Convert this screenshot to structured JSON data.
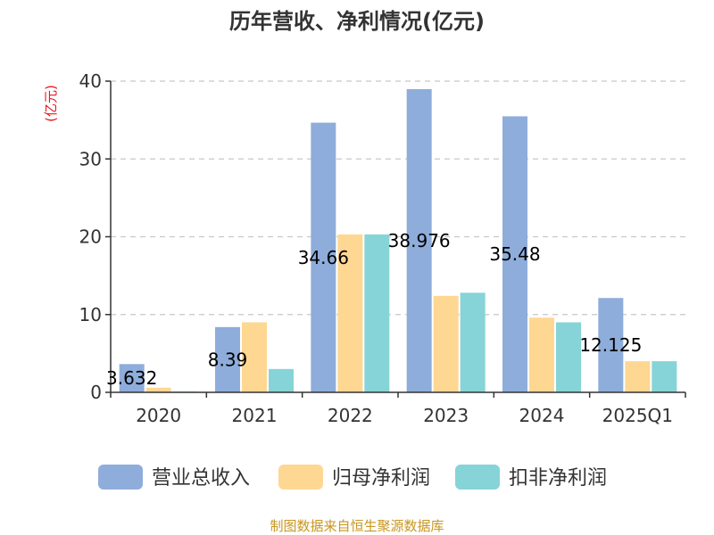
{
  "chart_data": {
    "type": "bar",
    "title": "历年营收、净利情况(亿元)",
    "unit_label": "(亿元)",
    "categories": [
      "2020",
      "2021",
      "2022",
      "2023",
      "2024",
      "2025Q1"
    ],
    "series": [
      {
        "name": "营业总收入",
        "color": "#8eaddb",
        "values": [
          3.632,
          8.39,
          34.66,
          38.976,
          35.48,
          12.125
        ]
      },
      {
        "name": "归母净利润",
        "color": "#fed793",
        "values": [
          0.6,
          9.0,
          20.3,
          12.4,
          9.6,
          4.0
        ]
      },
      {
        "name": "扣非净利润",
        "color": "#86d4d8",
        "values": [
          0.1,
          3.0,
          20.3,
          12.8,
          9.0,
          4.0
        ]
      }
    ],
    "data_labels": [
      "3.632",
      "8.39",
      "34.66",
      "38.976",
      "35.48",
      "12.125"
    ],
    "yticks": [
      "0",
      "10",
      "20",
      "30",
      "40"
    ],
    "ylim": [
      0,
      40
    ],
    "grid": true,
    "legend_position": "bottom"
  },
  "footer": {
    "source": "制图数据来自恒生聚源数据库"
  }
}
